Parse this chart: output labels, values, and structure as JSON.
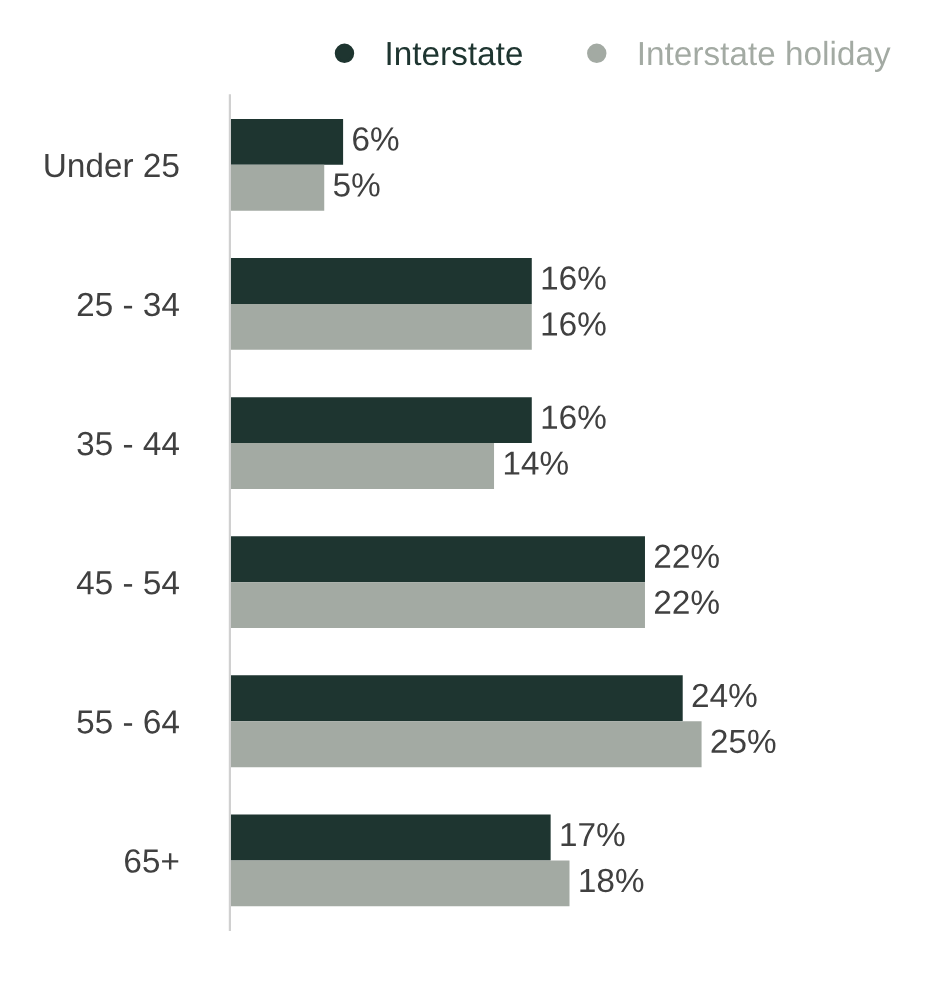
{
  "chart_data": {
    "type": "bar",
    "orientation": "horizontal",
    "categories": [
      "Under 25",
      "25 - 34",
      "35 - 44",
      "45 - 54",
      "55 - 64",
      "65+"
    ],
    "series": [
      {
        "name": "Interstate",
        "color": "#1e3530",
        "values": [
          6,
          16,
          16,
          22,
          24,
          17
        ],
        "value_labels": [
          "6%",
          "16%",
          "16%",
          "22%",
          "24%",
          "17%"
        ]
      },
      {
        "name": "Interstate holiday",
        "color": "#a3aaa3",
        "values": [
          5,
          16,
          14,
          22,
          25,
          18
        ],
        "value_labels": [
          "5%",
          "16%",
          "14%",
          "22%",
          "25%",
          "18%"
        ]
      }
    ],
    "legend": "top",
    "grid": false
  }
}
